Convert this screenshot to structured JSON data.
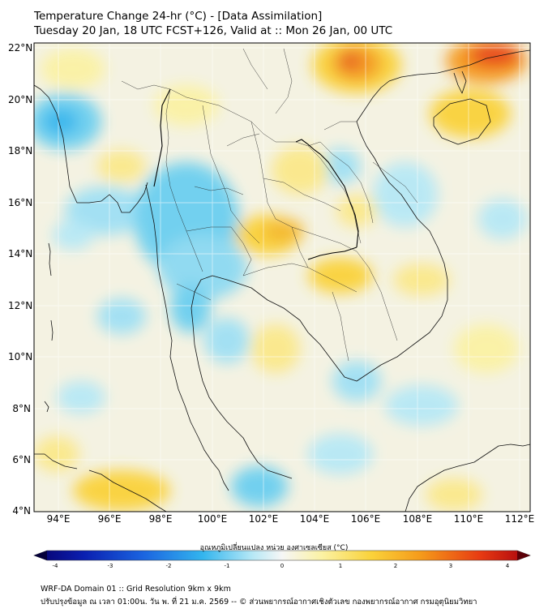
{
  "title_line1": "Temperature Change 24-hr (°C) - [Data Assimilation]",
  "title_line2": "Tuesday 20 Jan, 18 UTC FCST+126, Valid at :: Mon 26 Jan, 00 UTC",
  "lat_labels": [
    "22°N",
    "20°N",
    "18°N",
    "16°N",
    "14°N",
    "12°N",
    "10°N",
    "8°N",
    "6°N",
    "4°N"
  ],
  "lon_labels": [
    "94°E",
    "96°E",
    "98°E",
    "100°E",
    "102°E",
    "104°E",
    "106°E",
    "108°E",
    "110°E",
    "112°E"
  ],
  "colorbar": {
    "label": "อุณหภูมิเปลี่ยนแปลง หน่วย องศาเซลเซียส (°C)",
    "ticks": [
      "-4",
      "-3",
      "-2",
      "-1",
      "0",
      "1",
      "2",
      "3",
      "4"
    ],
    "range": [
      -4,
      4
    ],
    "colors": [
      "#08006b",
      "#0a1fb0",
      "#1b64e0",
      "#33b5ee",
      "#b6e8f6",
      "#f6f6f6",
      "#fbf2a4",
      "#fad23a",
      "#f59a1a",
      "#e73a12",
      "#a8000e"
    ]
  },
  "footer_line1": "WRF-DA Domain 01 :: Grid Resolution 9km x 9km",
  "footer_line2": "ปรับปรุงข้อมูล ณ เวลา 01:00น. วัน พ. ที่ 21 ม.ค. 2569 -- © ส่วนพยากรณ์อากาศเชิงตัวเลข กองพยากรณ์อากาศ กรมอุตุนิยมวิทยา"
}
